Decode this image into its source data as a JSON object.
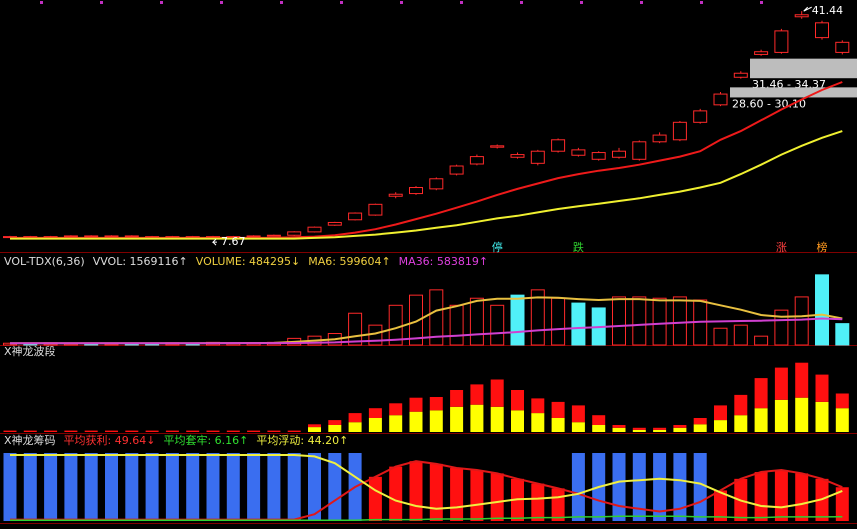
{
  "chart_data": [
    {
      "type": "candlestick",
      "color": "#ff2a2a",
      "ylim": [
        6.5,
        42.5
      ],
      "open": [
        7.8,
        7.9,
        7.8,
        7.9,
        8.0,
        7.9,
        8.0,
        7.9,
        7.8,
        7.9,
        7.8,
        7.9,
        7.9,
        8.0,
        8.1,
        8.6,
        9.6,
        10.4,
        11.1,
        13.9,
        14.3,
        15.0,
        17.2,
        18.7,
        21.2,
        20.1,
        18.8,
        20.6,
        20.8,
        20.4,
        19.7,
        19.4,
        22.0,
        22.3,
        24.9,
        27.5,
        31.6,
        35.0,
        35.3,
        40.6,
        39.7,
        36.8
      ],
      "high": [
        8.0,
        8.0,
        8.0,
        8.1,
        8.1,
        8.1,
        8.1,
        8.0,
        8.0,
        8.0,
        8.0,
        8.0,
        8.1,
        8.2,
        8.7,
        9.4,
        10.1,
        11.5,
        12.8,
        14.5,
        15.4,
        16.7,
        18.6,
        20.1,
        21.6,
        20.4,
        20.8,
        22.5,
        21.1,
        20.6,
        21.1,
        22.2,
        23.4,
        25.1,
        26.9,
        29.4,
        32.5,
        35.7,
        38.8,
        41.44,
        40.0,
        37.1
      ],
      "low": [
        7.7,
        7.7,
        7.7,
        7.8,
        7.8,
        7.8,
        7.8,
        7.7,
        7.7,
        7.7,
        7.67,
        7.8,
        7.8,
        7.9,
        8.0,
        8.5,
        9.5,
        10.3,
        11.0,
        13.6,
        14.1,
        14.8,
        17.0,
        18.5,
        21.0,
        19.5,
        18.5,
        20.4,
        19.8,
        19.2,
        19.5,
        19.2,
        21.8,
        22.1,
        24.7,
        27.3,
        31.4,
        34.8,
        35.1,
        40.3,
        37.2,
        35.0
      ],
      "close": [
        7.9,
        7.8,
        7.9,
        8.0,
        7.9,
        8.0,
        7.9,
        7.8,
        7.9,
        7.8,
        7.9,
        7.9,
        8.0,
        8.1,
        8.6,
        9.3,
        10.0,
        11.4,
        12.7,
        14.2,
        15.2,
        16.5,
        18.4,
        19.8,
        21.4,
        19.7,
        20.6,
        22.3,
        20.0,
        19.4,
        20.6,
        22.0,
        23.0,
        24.9,
        26.6,
        29.1,
        32.2,
        35.4,
        38.5,
        40.9,
        37.5,
        35.3
      ],
      "lines": [
        {
          "color": "#ee1a1a",
          "values": [
            7.7,
            7.7,
            7.7,
            7.7,
            7.7,
            7.7,
            7.7,
            7.7,
            7.7,
            7.7,
            7.7,
            7.7,
            7.7,
            7.7,
            7.8,
            7.9,
            8.1,
            8.5,
            9.0,
            9.7,
            10.5,
            11.3,
            12.2,
            13.1,
            14.1,
            15.0,
            15.8,
            16.6,
            17.2,
            17.7,
            18.1,
            18.6,
            19.2,
            19.8,
            20.6,
            22.3,
            23.6,
            25.2,
            26.8,
            28.3,
            29.7,
            30.9
          ]
        },
        {
          "color": "#f0f030",
          "values": [
            7.6,
            7.6,
            7.6,
            7.6,
            7.6,
            7.6,
            7.6,
            7.6,
            7.6,
            7.6,
            7.6,
            7.6,
            7.6,
            7.6,
            7.6,
            7.7,
            7.8,
            8.0,
            8.2,
            8.5,
            8.8,
            9.2,
            9.6,
            10.1,
            10.6,
            11.0,
            11.5,
            12.0,
            12.4,
            12.8,
            13.2,
            13.6,
            14.1,
            14.6,
            15.2,
            15.9,
            17.2,
            18.6,
            20.1,
            21.4,
            22.6,
            23.6
          ]
        }
      ],
      "zones": [
        {
          "low": 31.46,
          "high": 34.37,
          "label": "31.46 - 34.37"
        },
        {
          "low": 28.6,
          "high": 30.1,
          "label": "28.60 - 30.10"
        }
      ],
      "tags": [
        null,
        null,
        null,
        null,
        null,
        null,
        null,
        null,
        null,
        null,
        null,
        null,
        null,
        null,
        null,
        null,
        null,
        null,
        null,
        null,
        null,
        null,
        null,
        null,
        "停",
        null,
        null,
        null,
        "跌",
        null,
        null,
        null,
        null,
        null,
        null,
        null,
        null,
        null,
        "涨",
        null,
        "榜",
        null
      ],
      "tag_colors": [
        null,
        null,
        null,
        null,
        null,
        null,
        null,
        null,
        null,
        null,
        null,
        null,
        null,
        null,
        null,
        null,
        null,
        null,
        null,
        null,
        null,
        null,
        null,
        null,
        "#40e8e8",
        null,
        null,
        null,
        "#30d030",
        null,
        null,
        null,
        null,
        null,
        null,
        null,
        null,
        null,
        "#ff4040",
        null,
        "#ff9a20",
        null
      ]
    },
    {
      "type": "volume",
      "header": [
        {
          "text": "VOL-TDX(6,36)",
          "color": "#dddddd"
        },
        {
          "text": "VVOL: 1569116↑",
          "color": "#dddddd"
        },
        {
          "text": "VOLUME: 484295↓",
          "color": "#f0d040"
        },
        {
          "text": "MA6: 599604↑",
          "color": "#f0d040"
        },
        {
          "text": "MA36: 583819↑",
          "color": "#e040e0"
        }
      ],
      "up_color": "#ff2a2a",
      "down_color": "#50f0f8",
      "ylim": [
        0,
        1700000
      ],
      "values": [
        40000,
        30000,
        50000,
        35000,
        45000,
        30000,
        40000,
        35000,
        50000,
        45000,
        60000,
        40000,
        50000,
        60000,
        150000,
        200000,
        260000,
        720000,
        450000,
        900000,
        1130000,
        1250000,
        900000,
        1060000,
        900000,
        1130000,
        1250000,
        1060000,
        950000,
        840000,
        1090000,
        1090000,
        1060000,
        1090000,
        1020000,
        380000,
        450000,
        200000,
        790000,
        1090000,
        1590000,
        484295
      ],
      "lines": [
        {
          "color": "#e8c040",
          "values": [
            40000,
            40000,
            40000,
            40000,
            40000,
            40000,
            40000,
            40000,
            40000,
            40000,
            42000,
            44000,
            46000,
            48000,
            70000,
            100000,
            130000,
            200000,
            260000,
            380000,
            530000,
            780000,
            880000,
            1000000,
            1050000,
            1050000,
            1080000,
            1070000,
            1040000,
            1020000,
            1040000,
            1040000,
            1010000,
            1010000,
            1000000,
            900000,
            800000,
            680000,
            640000,
            650000,
            690000,
            599604
          ]
        },
        {
          "color": "#d040d0",
          "values": [
            38000,
            38000,
            39000,
            39000,
            39000,
            40000,
            40000,
            40000,
            40000,
            41000,
            41000,
            42000,
            42000,
            43000,
            45000,
            50000,
            60000,
            80000,
            95000,
            120000,
            150000,
            185000,
            210000,
            240000,
            265000,
            295000,
            330000,
            360000,
            385000,
            405000,
            430000,
            455000,
            480000,
            505000,
            525000,
            535000,
            545000,
            550000,
            565000,
            575000,
            600000,
            583819
          ]
        }
      ]
    },
    {
      "type": "stacked_bar",
      "header": [
        {
          "text": "X神龙波段",
          "color": "#dddddd"
        }
      ],
      "ylim": [
        0,
        100
      ],
      "series": [
        {
          "color": "#ffff00",
          "values": [
            0,
            0,
            0,
            0,
            0,
            0,
            0,
            0,
            0,
            0,
            0,
            0,
            0,
            0,
            0,
            7,
            10,
            14,
            20,
            24,
            29,
            31,
            36,
            39,
            36,
            31,
            27,
            20,
            14,
            10,
            6,
            3,
            3,
            6,
            11,
            17,
            24,
            34,
            46,
            49,
            43,
            34
          ]
        },
        {
          "color": "#ff1010",
          "values": [
            2,
            2,
            2,
            2,
            2,
            2,
            2,
            2,
            2,
            2,
            2,
            2,
            2,
            2,
            2,
            4,
            7,
            13,
            14,
            17,
            20,
            19,
            24,
            29,
            39,
            29,
            21,
            23,
            24,
            14,
            4,
            3,
            3,
            4,
            9,
            21,
            29,
            43,
            46,
            50,
            39,
            21
          ]
        }
      ]
    },
    {
      "type": "chip",
      "header": [
        {
          "text": "X神龙筹码",
          "color": "#dddddd"
        },
        {
          "text": "平均获利: 49.64↓",
          "color": "#ff3030"
        },
        {
          "text": "平均套牢: 6.16↑",
          "color": "#30e030"
        },
        {
          "text": "平均浮动: 44.20↑",
          "color": "#f0f040"
        }
      ],
      "ylim": [
        0,
        100
      ],
      "bar_color": "#ff1010",
      "back_color": "#3a6ef0",
      "lines": [
        {
          "color": "#e01818",
          "values": [
            2,
            2,
            2,
            2,
            2,
            2,
            2,
            2,
            2,
            2,
            2,
            2,
            2,
            2,
            2,
            10,
            30,
            50,
            65,
            80,
            88,
            84,
            78,
            75,
            70,
            62,
            55,
            48,
            40,
            30,
            22,
            18,
            14,
            18,
            28,
            45,
            62,
            72,
            75,
            70,
            62,
            49.64
          ]
        },
        {
          "color": "#f0f040",
          "values": [
            97,
            97,
            97,
            97,
            97,
            97,
            97,
            97,
            97,
            97,
            97,
            97,
            97,
            97,
            97,
            95,
            85,
            65,
            45,
            30,
            22,
            18,
            20,
            24,
            28,
            32,
            33,
            35,
            40,
            50,
            58,
            60,
            62,
            60,
            55,
            42,
            30,
            22,
            20,
            25,
            32,
            44.2
          ]
        },
        {
          "color": "#30d030",
          "values": [
            1,
            1,
            1,
            1,
            1,
            1,
            1,
            1,
            1,
            1,
            1,
            1,
            1,
            1,
            1,
            1,
            1,
            1,
            2,
            2,
            2,
            3,
            3,
            3,
            4,
            4,
            5,
            5,
            6,
            6,
            7,
            7,
            7,
            7,
            6,
            6,
            5,
            5,
            6,
            6,
            6,
            6.16
          ]
        }
      ]
    }
  ]
}
